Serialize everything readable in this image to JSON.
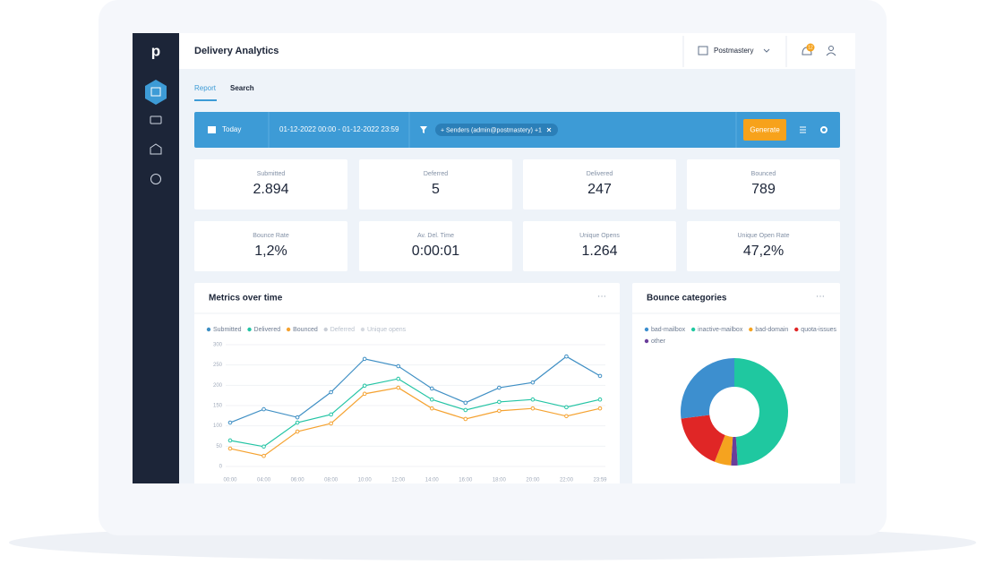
{
  "logo": "p",
  "header": {
    "title": "Delivery Analytics",
    "account": "Postmastery",
    "badge": "12"
  },
  "tabs": [
    "Report",
    "Search"
  ],
  "filter": {
    "range": "Today",
    "dates": "01-12-2022 00:00 - 01-12-2022 23:59",
    "chip": "+ Senders (admin@postmastery) +1",
    "button": "Generate"
  },
  "stats": [
    {
      "label": "Submitted",
      "value": "2.894"
    },
    {
      "label": "Deferred",
      "value": "5"
    },
    {
      "label": "Delivered",
      "value": "247"
    },
    {
      "label": "Bounced",
      "value": "789"
    },
    {
      "label": "Bounce Rate",
      "value": "1,2%"
    },
    {
      "label": "Av. Del. Time",
      "value": "0:00:01"
    },
    {
      "label": "Unique Opens",
      "value": "1.264"
    },
    {
      "label": "Unique Open Rate",
      "value": "47,2%"
    }
  ],
  "chart_data": [
    {
      "type": "line",
      "title": "Metrics over time",
      "categories": [
        "00:00",
        "04:00",
        "06:00",
        "08:00",
        "10:00",
        "12:00",
        "14:00",
        "16:00",
        "18:00",
        "20:00",
        "22:00",
        "23:59"
      ],
      "series": [
        {
          "name": "Submitted",
          "color": "#3f8fc4",
          "visible": true,
          "values": [
            108,
            141,
            121,
            183,
            265,
            247,
            192,
            157,
            194,
            207,
            271,
            223
          ]
        },
        {
          "name": "Delivered",
          "color": "#23c4a4",
          "visible": true,
          "values": [
            64,
            49,
            108,
            128,
            199,
            216,
            165,
            139,
            159,
            165,
            146,
            165
          ]
        },
        {
          "name": "Bounced",
          "color": "#f5a230",
          "visible": true,
          "values": [
            44,
            26,
            86,
            106,
            179,
            194,
            143,
            117,
            137,
            143,
            124,
            143
          ]
        },
        {
          "name": "Deferred",
          "color": "#c9ced6",
          "visible": false,
          "values": [
            null,
            null,
            null,
            null,
            null,
            null,
            null,
            null,
            null,
            null,
            null,
            null
          ]
        },
        {
          "name": "Unique opens",
          "color": "#d5d9e0",
          "visible": false,
          "values": [
            null,
            null,
            null,
            null,
            null,
            null,
            null,
            null,
            null,
            null,
            null,
            null
          ]
        }
      ],
      "ylim": [
        0,
        300
      ],
      "yticks": [
        0,
        50,
        100,
        150,
        200,
        250,
        300
      ],
      "grid": true
    },
    {
      "type": "pie",
      "title": "Bounce categories",
      "donut": true,
      "categories": [
        "bad-mailbox",
        "inactive-mailbox",
        "bad-domain",
        "quota-issues",
        "other"
      ],
      "values": [
        27,
        49,
        5,
        17,
        2
      ],
      "colors": [
        "#3d8fcf",
        "#1fc8a0",
        "#f5a31f",
        "#e02626",
        "#6a3d9a"
      ]
    }
  ]
}
